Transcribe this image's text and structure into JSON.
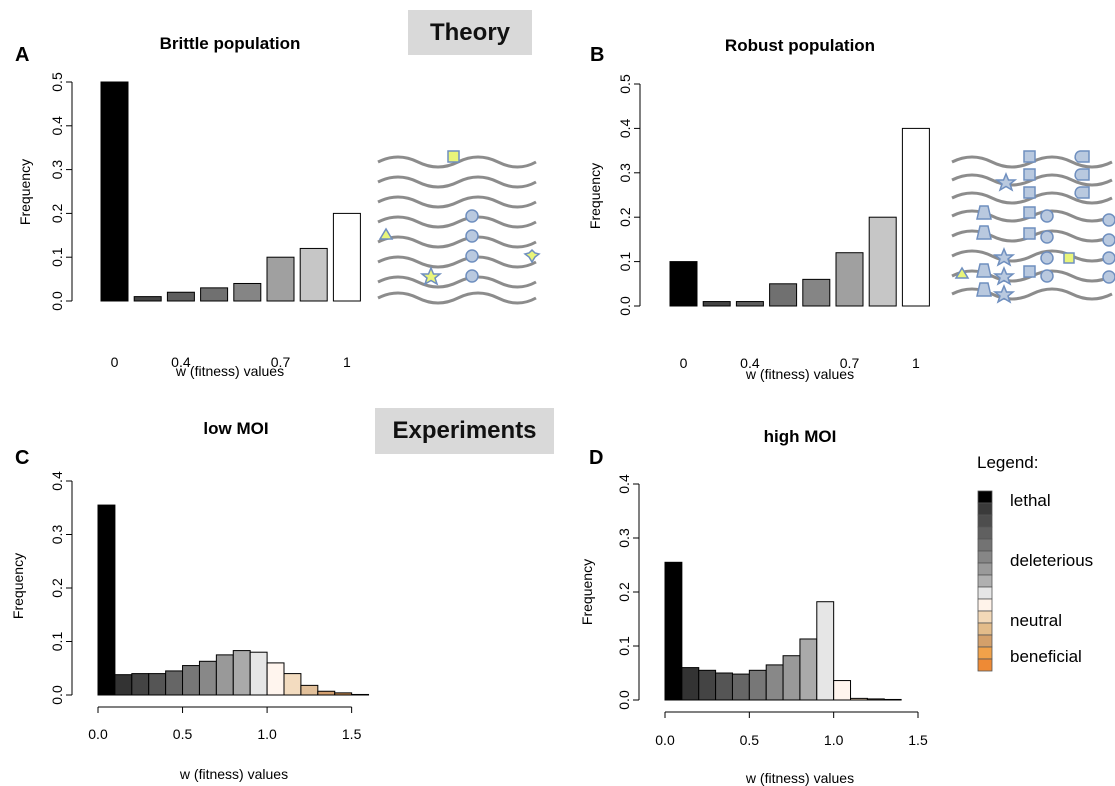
{
  "banners": {
    "theory": "Theory",
    "experiments": "Experiments"
  },
  "panels": {
    "A": {
      "letter": "A",
      "title": "Brittle population",
      "ylabel": "Frequency",
      "xlabel": "w (fitness) values"
    },
    "B": {
      "letter": "B",
      "title": "Robust population",
      "ylabel": "Frequency",
      "xlabel": "w (fitness) values"
    },
    "C": {
      "letter": "C",
      "title": "low MOI",
      "ylabel": "Frequency",
      "xlabel": "w (fitness) values"
    },
    "D": {
      "letter": "D",
      "title": "high MOI",
      "ylabel": "Frequency",
      "xlabel": "w (fitness) values"
    }
  },
  "legend": {
    "title": "Legend:",
    "labels": {
      "lethal": "lethal",
      "deleterious": "deleterious",
      "neutral": "neutral",
      "beneficial": "beneficial"
    },
    "swatch_colors": [
      "#000000",
      "#3a3a3a",
      "#4d4d4d",
      "#606060",
      "#737373",
      "#868686",
      "#9a9a9a",
      "#b0b0b0",
      "#e6e6e6",
      "#fff3ea",
      "#f3d9b8",
      "#e3bc8a",
      "#d4a06a",
      "#f1a24a",
      "#ee8a35"
    ]
  },
  "chart_data": [
    {
      "panel": "A",
      "type": "bar",
      "title": "Brittle population",
      "xlabel": "w (fitness) values",
      "ylabel": "Frequency",
      "ylim": [
        0,
        0.5
      ],
      "yticks": [
        "0.0",
        "0.1",
        "0.2",
        "0.3",
        "0.4",
        "0.5"
      ],
      "xtick_labels": [
        "0",
        "0.4",
        "0.7",
        "1"
      ],
      "xtick_bar_index": [
        0,
        2,
        5,
        7
      ],
      "values": [
        0.5,
        0.01,
        0.02,
        0.03,
        0.04,
        0.1,
        0.12,
        0.2
      ],
      "colors": [
        "#000000",
        "#444444",
        "#5e5e5e",
        "#707070",
        "#858585",
        "#a0a0a0",
        "#c6c6c6",
        "#ffffff"
      ]
    },
    {
      "panel": "B",
      "type": "bar",
      "title": "Robust population",
      "xlabel": "w (fitness) values",
      "ylabel": "Frequency",
      "ylim": [
        0,
        0.5
      ],
      "yticks": [
        "0.0",
        "0.1",
        "0.2",
        "0.3",
        "0.4",
        "0.5"
      ],
      "xtick_labels": [
        "0",
        "0.4",
        "0.7",
        "1"
      ],
      "xtick_bar_index": [
        0,
        2,
        5,
        7
      ],
      "values": [
        0.1,
        0.01,
        0.01,
        0.05,
        0.06,
        0.12,
        0.2,
        0.4
      ],
      "colors": [
        "#000000",
        "#444444",
        "#5e5e5e",
        "#707070",
        "#858585",
        "#a0a0a0",
        "#c6c6c6",
        "#ffffff"
      ]
    },
    {
      "panel": "C",
      "type": "bar",
      "title": "low MOI",
      "xlabel": "w (fitness) values",
      "ylabel": "Frequency",
      "ylim": [
        0,
        0.4
      ],
      "yticks": [
        "0.0",
        "0.1",
        "0.2",
        "0.3",
        "0.4"
      ],
      "xlim": [
        0,
        1.65
      ],
      "xticks": [
        "0.0",
        "0.5",
        "1.0",
        "1.5"
      ],
      "bin_width": 0.1,
      "bin_starts": [
        0.0,
        0.1,
        0.2,
        0.3,
        0.4,
        0.5,
        0.6,
        0.7,
        0.8,
        0.9,
        1.0,
        1.1,
        1.2,
        1.3,
        1.4,
        1.5
      ],
      "values": [
        0.355,
        0.038,
        0.04,
        0.04,
        0.045,
        0.055,
        0.063,
        0.075,
        0.083,
        0.08,
        0.06,
        0.04,
        0.018,
        0.007,
        0.004,
        0.001
      ],
      "colors": [
        "#000000",
        "#333333",
        "#444444",
        "#555555",
        "#666666",
        "#777777",
        "#888888",
        "#999999",
        "#aaaaaa",
        "#e6e6e6",
        "#fff5ee",
        "#f3dcc0",
        "#e2c09a",
        "#d4a070",
        "#c78a50",
        "#b97535"
      ]
    },
    {
      "panel": "D",
      "type": "bar",
      "title": "high MOI",
      "xlabel": "w (fitness) values",
      "ylabel": "Frequency",
      "ylim": [
        0,
        0.4
      ],
      "yticks": [
        "0.0",
        "0.1",
        "0.2",
        "0.3",
        "0.4"
      ],
      "xlim": [
        0,
        1.5
      ],
      "xticks": [
        "0.0",
        "0.5",
        "1.0",
        "1.5"
      ],
      "bin_width": 0.1,
      "bin_starts": [
        0.0,
        0.1,
        0.2,
        0.3,
        0.4,
        0.5,
        0.6,
        0.7,
        0.8,
        0.9,
        1.0,
        1.1,
        1.2,
        1.3
      ],
      "values": [
        0.255,
        0.06,
        0.055,
        0.05,
        0.048,
        0.055,
        0.065,
        0.082,
        0.113,
        0.182,
        0.036,
        0.003,
        0.002,
        0.001
      ],
      "colors": [
        "#000000",
        "#333333",
        "#444444",
        "#555555",
        "#666666",
        "#777777",
        "#888888",
        "#999999",
        "#aaaaaa",
        "#e6e6e6",
        "#fff5ee",
        "#f3dcc0",
        "#e2c09a",
        "#d4a070"
      ]
    }
  ]
}
